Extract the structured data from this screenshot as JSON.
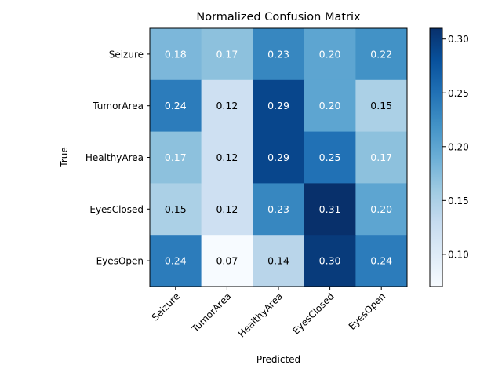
{
  "chart_data": {
    "type": "heatmap",
    "title": "Normalized Confusion Matrix",
    "xlabel": "Predicted",
    "ylabel": "True",
    "x_categories": [
      "Seizure",
      "TumorArea",
      "HealthyArea",
      "EyesClosed",
      "EyesOpen"
    ],
    "y_categories": [
      "Seizure",
      "TumorArea",
      "HealthyArea",
      "EyesClosed",
      "EyesOpen"
    ],
    "values": [
      [
        0.18,
        0.17,
        0.23,
        0.2,
        0.22
      ],
      [
        0.24,
        0.12,
        0.29,
        0.2,
        0.15
      ],
      [
        0.17,
        0.12,
        0.29,
        0.25,
        0.17
      ],
      [
        0.15,
        0.12,
        0.23,
        0.31,
        0.2
      ],
      [
        0.24,
        0.07,
        0.14,
        0.3,
        0.24
      ]
    ],
    "colorbar": {
      "colormap": "Blues",
      "range": [
        0.07,
        0.31
      ],
      "ticks": [
        "0.10",
        "0.15",
        "0.20",
        "0.25",
        "0.30"
      ]
    }
  }
}
